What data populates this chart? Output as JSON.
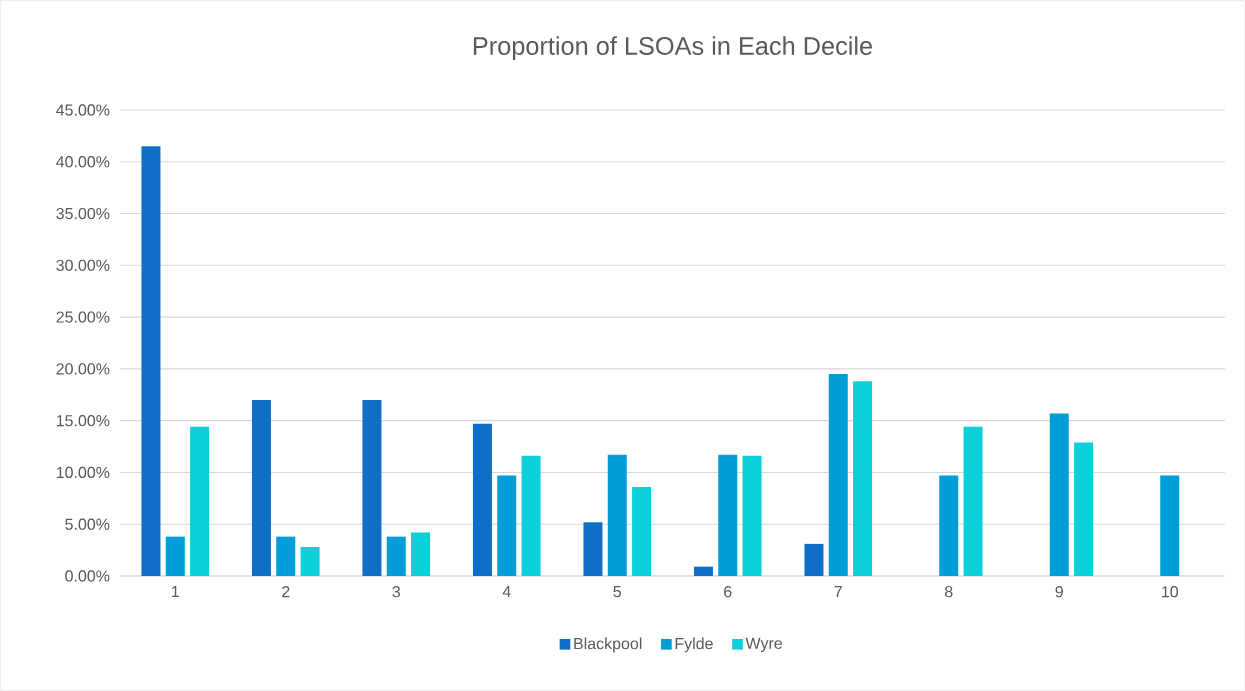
{
  "chart_data": {
    "type": "bar",
    "title": "Proportion of LSOAs in Each Decile",
    "categories": [
      "1",
      "2",
      "3",
      "4",
      "5",
      "6",
      "7",
      "8",
      "9",
      "10"
    ],
    "series": [
      {
        "name": "Blackpool",
        "color": "#0f6fc6",
        "values": [
          41.5,
          17.0,
          17.0,
          14.7,
          5.2,
          0.9,
          3.1,
          0,
          0,
          0
        ]
      },
      {
        "name": "Fylde",
        "color": "#009dd9",
        "values": [
          3.8,
          3.8,
          3.8,
          9.7,
          11.7,
          11.7,
          19.5,
          9.7,
          15.7,
          9.7
        ]
      },
      {
        "name": "Wyre",
        "color": "#0bd0d9",
        "values": [
          14.4,
          2.8,
          4.2,
          11.6,
          8.6,
          11.6,
          18.8,
          14.4,
          12.9,
          0
        ]
      }
    ],
    "ylim": [
      0,
      45
    ],
    "yticks": [
      {
        "value": 0,
        "label": "0.00%"
      },
      {
        "value": 5,
        "label": "5.00%"
      },
      {
        "value": 10,
        "label": "10.00%"
      },
      {
        "value": 15,
        "label": "15.00%"
      },
      {
        "value": 20,
        "label": "20.00%"
      },
      {
        "value": 25,
        "label": "25.00%"
      },
      {
        "value": 30,
        "label": "30.00%"
      },
      {
        "value": 35,
        "label": "35.00%"
      },
      {
        "value": 40,
        "label": "40.00%"
      },
      {
        "value": 45,
        "label": "45.00%"
      }
    ],
    "grid": "y",
    "legend": "bottom"
  }
}
